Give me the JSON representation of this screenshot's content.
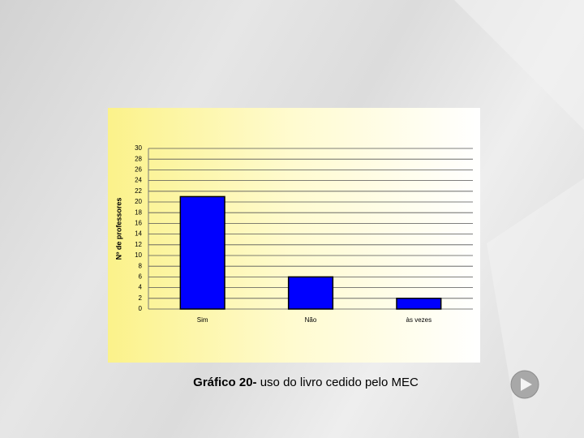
{
  "chart_data": {
    "type": "bar",
    "y_label": "Nº de professores",
    "categories": [
      "Sim",
      "Não",
      "às vezes"
    ],
    "values": [
      21,
      6,
      2
    ],
    "color": "#0000ff",
    "ylim": [
      0,
      30
    ],
    "yticks": [
      0,
      2,
      4,
      6,
      8,
      10,
      12,
      14,
      16,
      18,
      20,
      22,
      24,
      26,
      28,
      30
    ],
    "grid": true,
    "caption": [
      "Gráfico 20-",
      "uso do livro cedido pelo MEC"
    ]
  }
}
